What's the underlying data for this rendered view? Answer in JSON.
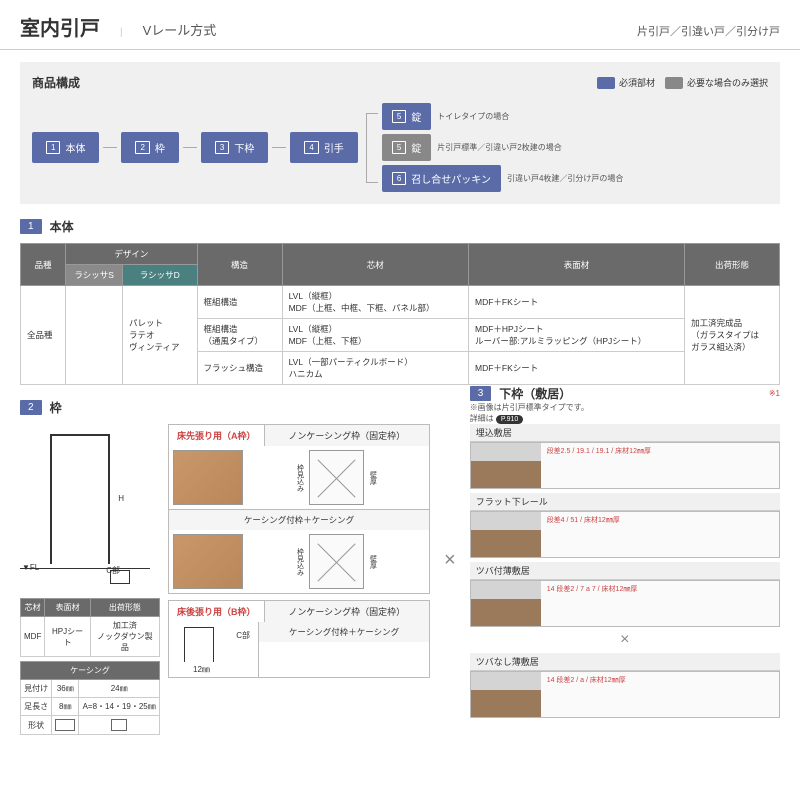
{
  "header": {
    "title": "室内引戸",
    "subtitle": "Vレール方式",
    "right": "片引戸／引違い戸／引分け戸"
  },
  "composition": {
    "title": "商品構成",
    "legend_required": "必須部材",
    "legend_optional": "必要な場合のみ選択",
    "items": [
      "本体",
      "枠",
      "下枠",
      "引手"
    ],
    "branch": [
      {
        "num": "5",
        "label": "錠",
        "note": "トイレタイプの場合",
        "color": "blue"
      },
      {
        "num": "5",
        "label": "錠",
        "note": "片引戸標準／引違い戸2枚建の場合",
        "color": "gray"
      },
      {
        "num": "6",
        "label": "召し合せパッキン",
        "note": "引違い戸4枚建／引分け戸の場合",
        "color": "blue"
      }
    ]
  },
  "sec1": {
    "num": "1",
    "title": "本体"
  },
  "spec_table": {
    "headers": {
      "hinshu": "品種",
      "design": "デザイン",
      "design_s": "ラシッサS",
      "design_d": "ラシッサD",
      "kouzou": "構造",
      "shin": "芯材",
      "hyomen": "表面材",
      "shukka": "出荷形態"
    },
    "hinshu_val": "全品種",
    "design_d_vals": "パレット\nラテオ\nヴィンティア",
    "rows": [
      {
        "kouzou": "框組構造",
        "shin": "LVL（縦框）\nMDF（上框、中框、下框、パネル部）",
        "hyomen": "MDF＋FKシート"
      },
      {
        "kouzou": "框組構造\n（通風タイプ）",
        "shin": "LVL（縦框）\nMDF（上框、下框）",
        "hyomen": "MDF＋HPJシート\nルーバー部:アルミラッピング（HPJシート）"
      },
      {
        "kouzou": "フラッシュ構造",
        "shin": "LVL（一部パーティクルボード）\nハニカム",
        "hyomen": "MDF＋FKシート"
      }
    ],
    "shukka_val": "加工済完成品\n（ガラスタイプは\nガラス組込済）"
  },
  "sec2": {
    "num": "2",
    "title": "枠"
  },
  "sec3": {
    "num": "3",
    "title": "下枠（敷居）",
    "note_red": "※1",
    "note": "※画像は片引戸標準タイプです。",
    "detail": "詳細は",
    "ref": "P.910"
  },
  "waku_diag": {
    "c": "C部",
    "h": "H",
    "fl": "▼FL"
  },
  "waku_spec": {
    "headers": [
      "芯材",
      "表面材",
      "出荷形態"
    ],
    "row": [
      "MDF",
      "HPJシート",
      "加工済\nノックダウン製品"
    ]
  },
  "casing": {
    "title": "ケーシング",
    "cols": [
      "",
      "36㎜",
      "24㎜"
    ],
    "r1": [
      "見付け",
      "36㎜",
      "24㎜"
    ],
    "r2": [
      "足長さ",
      "8㎜",
      "A=8・14・19・25㎜"
    ],
    "r3_label": "形状"
  },
  "frame_a": {
    "label": "床先張り用（A枠）",
    "t1": "ノンケーシング枠（固定枠）",
    "t2": "ケーシング付枠＋ケーシング",
    "side": "枠見込み",
    "side2": "壁厚"
  },
  "frame_b": {
    "label": "床後張り用（B枠）",
    "t1": "ノンケーシング枠（固定枠）",
    "t2": "ケーシング付枠＋ケーシング",
    "c": "C部",
    "d12": "12㎜"
  },
  "sills": [
    {
      "title": "埋込敷居",
      "dims": "段差2.5 / 19.1 / 19.1 / 床材12㎜厚"
    },
    {
      "title": "フラット下レール",
      "dims": "段差4 / 51 / 床材12㎜厚"
    },
    {
      "title": "ツバ付薄敷居",
      "dims": "14 段差2 / 7 a 7 / 床材12㎜厚"
    },
    {
      "title": "ツバなし薄敷居",
      "dims": "14 段差2 / a / 床材12㎜厚"
    }
  ]
}
